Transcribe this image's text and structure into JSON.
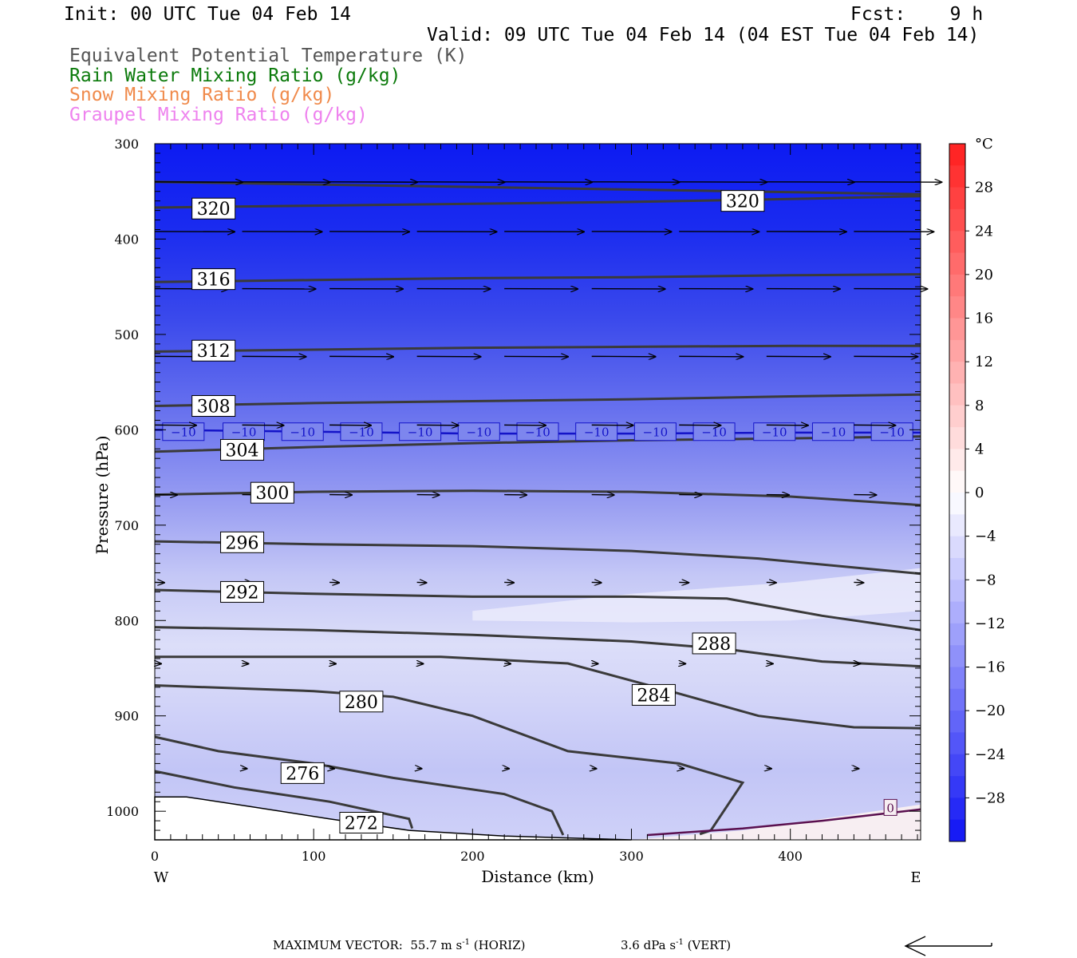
{
  "header": {
    "init": "Init: 00 UTC Tue 04 Feb 14",
    "fcst_label": "Fcst:",
    "fcst_value": "9 h",
    "valid": "Valid: 09 UTC Tue 04 Feb 14 (04 EST Tue 04 Feb 14)"
  },
  "legend": [
    {
      "label": "Equivalent Potential Temperature (K)",
      "color": "#555555"
    },
    {
      "label": "Rain Water Mixing Ratio (g/kg)",
      "color": "#0b7a0b"
    },
    {
      "label": "Snow Mixing Ratio (g/kg)",
      "color": "#f08a4b"
    },
    {
      "label": "Graupel Mixing Ratio (g/kg)",
      "color": "#ee82ee"
    }
  ],
  "footer": {
    "max_vector": "MAXIMUM VECTOR:  55.7 m s",
    "horiz": " (HORIZ)",
    "vert": "3.6 dPa s",
    "vert_suffix": " (VERT)",
    "sup": "-1"
  },
  "chart_data": {
    "type": "heatmap",
    "xlabel": "Distance (km)",
    "ylabel": "Pressure (hPa)",
    "xlim": [
      0,
      482
    ],
    "ylim": [
      1030,
      300
    ],
    "x_ticks": [
      0,
      100,
      200,
      300,
      400
    ],
    "y_ticks": [
      300,
      400,
      500,
      600,
      700,
      800,
      900,
      1000
    ],
    "x_end_labels": {
      "left": "W",
      "right": "E"
    },
    "colorbar": {
      "unit": "°C",
      "ticks": [
        28,
        24,
        20,
        16,
        12,
        8,
        4,
        0,
        -4,
        -8,
        -12,
        -16,
        -20,
        -24,
        -28
      ],
      "tick_labels": [
        "28",
        "24",
        "20",
        "16",
        "12",
        "8",
        "4",
        "0",
        "−4",
        "−8",
        "−12",
        "−16",
        "−20",
        "−24",
        "−28"
      ],
      "range": [
        -32,
        32
      ]
    },
    "theta_e_contours": [
      {
        "label": "320",
        "points": [
          [
            0,
            367
          ],
          [
            100,
            365
          ],
          [
            200,
            363
          ],
          [
            300,
            361
          ],
          [
            400,
            358
          ],
          [
            482,
            355
          ]
        ],
        "label_at": [
          37,
          368
        ]
      },
      {
        "label": "320",
        "points": [
          [
            0,
            340
          ],
          [
            482,
            353
          ]
        ],
        "label_at": [
          370,
          360
        ]
      },
      {
        "label": "316",
        "points": [
          [
            0,
            445
          ],
          [
            100,
            443
          ],
          [
            200,
            441
          ],
          [
            300,
            440
          ],
          [
            400,
            438
          ],
          [
            482,
            437
          ]
        ],
        "label_at": [
          37,
          442
        ]
      },
      {
        "label": "312",
        "points": [
          [
            0,
            518
          ],
          [
            100,
            516
          ],
          [
            200,
            514
          ],
          [
            300,
            513
          ],
          [
            400,
            512
          ],
          [
            482,
            512
          ]
        ],
        "label_at": [
          37,
          517
        ]
      },
      {
        "label": "308",
        "points": [
          [
            0,
            575
          ],
          [
            100,
            572
          ],
          [
            200,
            570
          ],
          [
            300,
            568
          ],
          [
            400,
            565
          ],
          [
            482,
            563
          ]
        ],
        "label_at": [
          37,
          575
        ]
      },
      {
        "label": "304",
        "points": [
          [
            0,
            623
          ],
          [
            100,
            618
          ],
          [
            200,
            614
          ],
          [
            300,
            611
          ],
          [
            400,
            609
          ],
          [
            482,
            607
          ]
        ],
        "label_at": [
          55,
          621
        ]
      },
      {
        "label": "300",
        "points": [
          [
            0,
            668
          ],
          [
            100,
            665
          ],
          [
            200,
            664
          ],
          [
            300,
            665
          ],
          [
            400,
            670
          ],
          [
            482,
            679
          ]
        ],
        "label_at": [
          74,
          666
        ]
      },
      {
        "label": "296",
        "points": [
          [
            0,
            717
          ],
          [
            100,
            720
          ],
          [
            200,
            722
          ],
          [
            300,
            727
          ],
          [
            380,
            735
          ],
          [
            482,
            751
          ]
        ],
        "label_at": [
          55,
          718
        ]
      },
      {
        "label": "292",
        "points": [
          [
            0,
            768
          ],
          [
            100,
            772
          ],
          [
            200,
            775
          ],
          [
            300,
            775
          ],
          [
            360,
            777
          ],
          [
            420,
            795
          ],
          [
            482,
            810
          ]
        ],
        "label_at": [
          55,
          770
        ]
      },
      {
        "label": "288",
        "points": [
          [
            0,
            807
          ],
          [
            100,
            810
          ],
          [
            200,
            815
          ],
          [
            300,
            822
          ],
          [
            360,
            830
          ],
          [
            420,
            843
          ],
          [
            482,
            848
          ]
        ],
        "label_at": [
          352,
          824
        ]
      },
      {
        "label": "284",
        "points": [
          [
            0,
            838
          ],
          [
            100,
            838
          ],
          [
            180,
            838
          ],
          [
            260,
            845
          ],
          [
            320,
            872
          ],
          [
            380,
            900
          ],
          [
            440,
            912
          ],
          [
            482,
            913
          ]
        ],
        "label_at": [
          314,
          878
        ]
      },
      {
        "label": "280",
        "points": [
          [
            0,
            868
          ],
          [
            100,
            874
          ],
          [
            150,
            880
          ],
          [
            200,
            900
          ],
          [
            260,
            937
          ],
          [
            330,
            950
          ],
          [
            370,
            970
          ],
          [
            350,
            1020
          ],
          [
            343,
            1024
          ]
        ],
        "label_at": [
          130,
          885
        ]
      },
      {
        "label": "276",
        "points": [
          [
            0,
            922
          ],
          [
            40,
            937
          ],
          [
            100,
            950
          ],
          [
            150,
            965
          ],
          [
            220,
            982
          ],
          [
            250,
            1000
          ],
          [
            257,
            1025
          ]
        ],
        "label_at": [
          93,
          960
        ]
      },
      {
        "label": "272",
        "points": [
          [
            0,
            958
          ],
          [
            50,
            975
          ],
          [
            110,
            990
          ],
          [
            160,
            1008
          ],
          [
            162,
            1018
          ]
        ],
        "label_at": [
          130,
          1012
        ]
      }
    ],
    "isotherm_minus10": {
      "label": "−10",
      "points": [
        [
          0,
          600
        ],
        [
          100,
          602
        ],
        [
          200,
          604
        ],
        [
          300,
          604
        ],
        [
          400,
          603
        ],
        [
          482,
          603
        ]
      ],
      "label_x": [
        18,
        56,
        93,
        130,
        167,
        204,
        241,
        278,
        315,
        352,
        390,
        427,
        464
      ]
    },
    "freezing_line": {
      "label": "0",
      "points": [
        [
          310,
          1025
        ],
        [
          370,
          1018
        ],
        [
          420,
          1010
        ],
        [
          482,
          998
        ]
      ],
      "label_at": [
        463,
        996
      ]
    },
    "wind_rows": [
      {
        "p": 340,
        "x": [
          0,
          55,
          110,
          165,
          220,
          275,
          330,
          385,
          440
        ],
        "len": 55
      },
      {
        "p": 392,
        "x": [
          0,
          55,
          110,
          165,
          220,
          275,
          330,
          385,
          440
        ],
        "len": 50
      },
      {
        "p": 452,
        "x": [
          0,
          55,
          110,
          165,
          220,
          275,
          330,
          385,
          440
        ],
        "len": 46
      },
      {
        "p": 523,
        "x": [
          0,
          55,
          110,
          165,
          220,
          275,
          330,
          385,
          440
        ],
        "len": 40
      },
      {
        "p": 595,
        "x": [
          0,
          55,
          110,
          165,
          220,
          275,
          330,
          385,
          440
        ],
        "len": 26
      },
      {
        "p": 668,
        "x": [
          0,
          55,
          110,
          165,
          220,
          275,
          330,
          385,
          440
        ],
        "len": 14
      },
      {
        "p": 760,
        "x": [
          0,
          55,
          110,
          165,
          220,
          275,
          330,
          385,
          440
        ],
        "len": 6
      },
      {
        "p": 845,
        "x": [
          0,
          55,
          110,
          165,
          220,
          275,
          330,
          385,
          440
        ],
        "len": 4
      },
      {
        "p": 955,
        "x": [
          55,
          110,
          165,
          220,
          275,
          330,
          385,
          440
        ],
        "len": 3
      }
    ]
  }
}
